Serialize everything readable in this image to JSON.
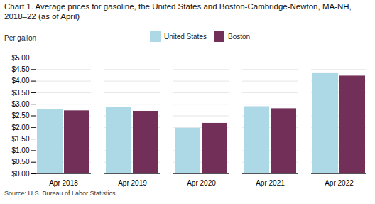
{
  "chart_data": {
    "type": "bar",
    "title": "Chart 1. Average prices for gasoline, the United States and Boston-Cambridge-Newton, MA-NH, 2018–22 (as of April)",
    "ylabel": "Per gallon",
    "source": "Source: U.S. Bureau of Labor Statistics.",
    "categories": [
      "Apr 2018",
      "Apr 2019",
      "Apr 2020",
      "Apr 2021",
      "Apr 2022"
    ],
    "series": [
      {
        "name": "United States",
        "color": "#ADD8E6",
        "values": [
          2.78,
          2.88,
          1.97,
          2.9,
          4.36
        ]
      },
      {
        "name": "Boston",
        "color": "#722F57",
        "values": [
          2.72,
          2.7,
          2.18,
          2.81,
          4.22
        ]
      }
    ],
    "ylim": [
      0,
      5.0
    ],
    "yticks": [
      {
        "value": 0.0,
        "label": "$0.00"
      },
      {
        "value": 0.5,
        "label": "$0.50"
      },
      {
        "value": 1.0,
        "label": "$1.00"
      },
      {
        "value": 1.5,
        "label": "$1.50"
      },
      {
        "value": 2.0,
        "label": "$2.00"
      },
      {
        "value": 2.5,
        "label": "$2.50"
      },
      {
        "value": 3.0,
        "label": "$3.00"
      },
      {
        "value": 3.5,
        "label": "$3.50"
      },
      {
        "value": 4.0,
        "label": "$4.00"
      },
      {
        "value": 4.5,
        "label": "$4.50"
      },
      {
        "value": 5.0,
        "label": "$5.00"
      }
    ],
    "grid": true,
    "legend": "top"
  }
}
